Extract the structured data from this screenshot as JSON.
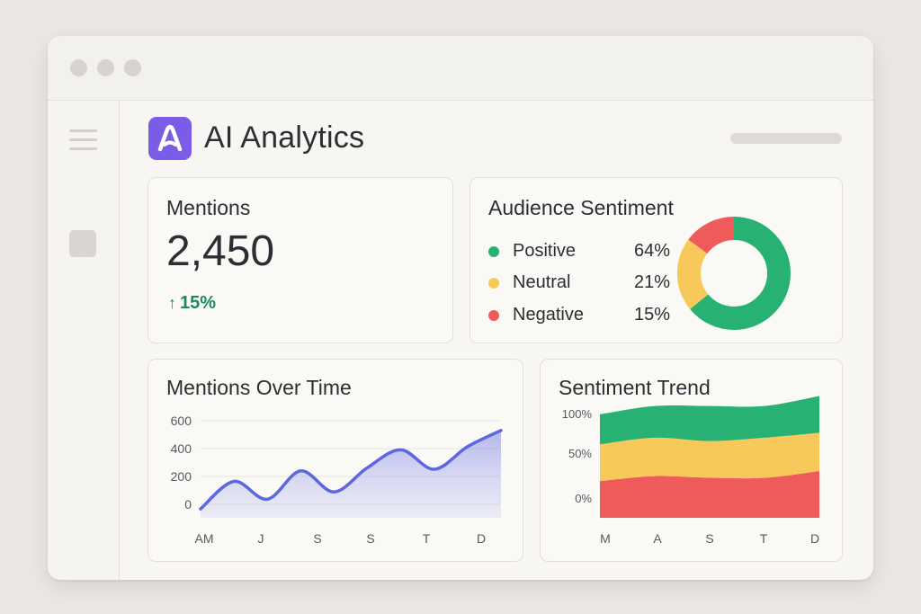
{
  "app": {
    "title": "AI Analytics"
  },
  "colors": {
    "accent": "#7b5ce6",
    "positive": "#27b274",
    "neutral": "#f7c85a",
    "negative": "#ef5b5b",
    "line": "#5c67e0"
  },
  "mentions": {
    "title": "Mentions",
    "value": "2,450",
    "change": "15%",
    "change_icon": "arrow-up-icon"
  },
  "sentiment": {
    "title": "Audience Sentiment",
    "items": [
      {
        "label": "Positive",
        "percent": "64%",
        "value": 64
      },
      {
        "label": "Neutral",
        "percent": "21%",
        "value": 21
      },
      {
        "label": "Negative",
        "percent": "15%",
        "value": 15
      }
    ]
  },
  "mentions_over_time": {
    "title": "Mentions Over Time",
    "chart_data": {
      "type": "area",
      "x_ticks": [
        "AM",
        "J",
        "S",
        "S",
        "T",
        "D"
      ],
      "y_ticks": [
        "600",
        "400",
        "200",
        "0"
      ],
      "ylim": [
        0,
        600
      ],
      "values": [
        55,
        225,
        115,
        290,
        160,
        310,
        420,
        300,
        440,
        540
      ]
    }
  },
  "sentiment_trend": {
    "title": "Sentiment Trend",
    "chart_data": {
      "type": "area",
      "x_ticks": [
        "M",
        "A",
        "S",
        "T",
        "D"
      ],
      "y_ticks": [
        "100%",
        "50%",
        "0%"
      ],
      "series": [
        {
          "name": "Negative",
          "values": [
            22,
            25,
            24,
            24,
            28
          ]
        },
        {
          "name": "Neutral",
          "values": [
            22,
            23,
            22,
            24,
            23
          ]
        },
        {
          "name": "Positive",
          "values": [
            18,
            19,
            21,
            19,
            22
          ]
        }
      ]
    }
  }
}
